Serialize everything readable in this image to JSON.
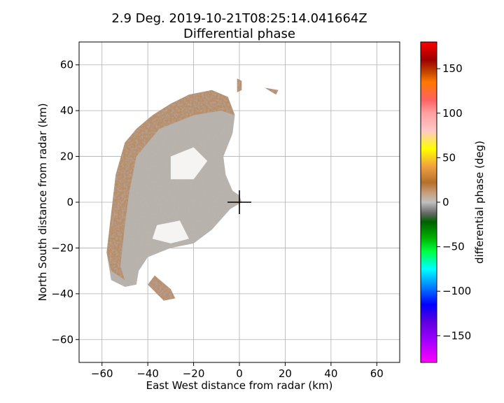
{
  "chart_data": {
    "type": "heatmap",
    "title": "2.9 Deg. 2019-10-21T08:25:14.041664Z",
    "subtitle": "Differential phase",
    "xlabel": "East West distance from radar (km)",
    "ylabel": "North South distance from radar (km)",
    "xlim": [
      -70,
      70
    ],
    "ylim": [
      -70,
      70
    ],
    "xticks": [
      -60,
      -40,
      -20,
      0,
      20,
      40,
      60
    ],
    "yticks": [
      -60,
      -40,
      -20,
      0,
      20,
      40,
      60
    ],
    "grid": true,
    "radar_marker": {
      "x": 0,
      "y": 0,
      "symbol": "+"
    },
    "colorbar": {
      "label": "differential phase (deg)",
      "range": [
        -180,
        180
      ],
      "ticks": [
        150,
        100,
        50,
        0,
        -50,
        -100,
        -150
      ],
      "stops": [
        {
          "value": 180,
          "color": "#ff0000"
        },
        {
          "value": 160,
          "color": "#9b0000"
        },
        {
          "value": 145,
          "color": "#c84a00"
        },
        {
          "value": 135,
          "color": "#ff7800"
        },
        {
          "value": 115,
          "color": "#ff6262"
        },
        {
          "value": 100,
          "color": "#ffa0a0"
        },
        {
          "value": 80,
          "color": "#ffc8c8"
        },
        {
          "value": 60,
          "color": "#ffff00"
        },
        {
          "value": 40,
          "color": "#f0a040"
        },
        {
          "value": 22,
          "color": "#b4702a"
        },
        {
          "value": 10,
          "color": "#c8a080"
        },
        {
          "value": 0,
          "color": "#c0c0c0"
        },
        {
          "value": -12,
          "color": "#6a6a6a"
        },
        {
          "value": -22,
          "color": "#006000"
        },
        {
          "value": -40,
          "color": "#00b000"
        },
        {
          "value": -55,
          "color": "#00ff40"
        },
        {
          "value": -75,
          "color": "#00ffff"
        },
        {
          "value": -95,
          "color": "#0080ff"
        },
        {
          "value": -115,
          "color": "#0000ff"
        },
        {
          "value": -135,
          "color": "#6000e0"
        },
        {
          "value": -155,
          "color": "#a000ff"
        },
        {
          "value": -180,
          "color": "#ff00ff"
        }
      ]
    },
    "echo_region": {
      "description_values_deg": [
        0,
        20
      ],
      "outline_km": [
        [
          -38,
          38
        ],
        [
          -30,
          43
        ],
        [
          -22,
          47
        ],
        [
          -12,
          49
        ],
        [
          -5,
          46
        ],
        [
          -2,
          38
        ],
        [
          -3,
          30
        ],
        [
          -7,
          20
        ],
        [
          -6,
          12
        ],
        [
          -3,
          5
        ],
        [
          0,
          3
        ],
        [
          1,
          0
        ],
        [
          -4,
          -3
        ],
        [
          -12,
          -12
        ],
        [
          -20,
          -18
        ],
        [
          -30,
          -20
        ],
        [
          -40,
          -24
        ],
        [
          -44,
          -30
        ],
        [
          -45,
          -36
        ],
        [
          -50,
          -37
        ],
        [
          -56,
          -34
        ],
        [
          -58,
          -22
        ],
        [
          -56,
          -5
        ],
        [
          -54,
          12
        ],
        [
          -50,
          26
        ],
        [
          -45,
          32
        ]
      ],
      "detached_km": [
        [
          [
            -37,
            -32
          ],
          [
            -30,
            -38
          ],
          [
            -28,
            -42
          ],
          [
            -33,
            -43
          ],
          [
            -40,
            -36
          ]
        ],
        [
          [
            -1,
            54
          ],
          [
            1,
            53
          ],
          [
            1,
            49
          ],
          [
            -1,
            48
          ]
        ],
        [
          [
            11,
            50
          ],
          [
            16,
            47
          ],
          [
            17,
            49
          ]
        ]
      ]
    }
  }
}
